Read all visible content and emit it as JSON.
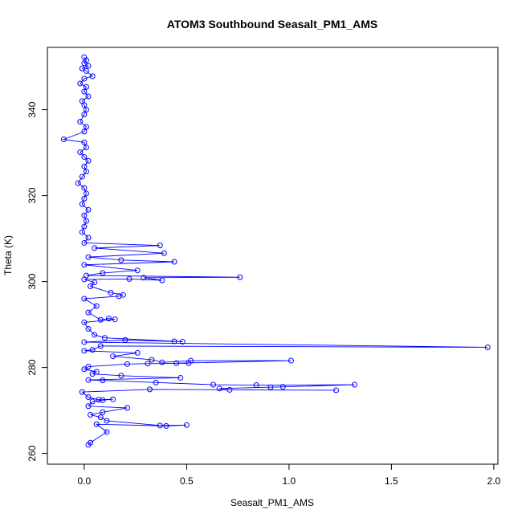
{
  "chart_data": {
    "type": "line",
    "title": "ATOM3 Southbound Seasalt_PM1_AMS",
    "xlabel": "Seasalt_PM1_AMS",
    "ylabel": "Theta (K)",
    "xlim": [
      -0.18,
      2.02
    ],
    "ylim": [
      257.5,
      354.5
    ],
    "x_ticks": [
      0.0,
      0.5,
      1.0,
      1.5,
      2.0
    ],
    "x_tick_labels": [
      "0.0",
      "0.5",
      "1.0",
      "1.5",
      "2.0"
    ],
    "y_ticks": [
      260,
      280,
      300,
      320,
      340
    ],
    "y_tick_labels": [
      "260",
      "280",
      "300",
      "320",
      "340"
    ],
    "grid": false,
    "marker": "open-circle",
    "series": [
      {
        "color": "#0000ff",
        "points": [
          [
            0.0,
            352.2
          ],
          [
            0.01,
            351.5
          ],
          [
            0.0,
            350.8
          ],
          [
            0.02,
            350.2
          ],
          [
            -0.01,
            349.6
          ],
          [
            0.01,
            349.0
          ],
          [
            0.04,
            347.8
          ],
          [
            0.0,
            347.2
          ],
          [
            -0.02,
            346.1
          ],
          [
            0.01,
            345.3
          ],
          [
            0.0,
            344.2
          ],
          [
            0.02,
            343.1
          ],
          [
            -0.01,
            342.0
          ],
          [
            0.0,
            341.1
          ],
          [
            0.01,
            340.0
          ],
          [
            0.0,
            338.9
          ],
          [
            -0.02,
            337.2
          ],
          [
            0.01,
            336.0
          ],
          [
            0.0,
            334.9
          ],
          [
            -0.1,
            333.1
          ],
          [
            0.0,
            332.4
          ],
          [
            0.01,
            331.2
          ],
          [
            -0.02,
            330.1
          ],
          [
            0.0,
            329.0
          ],
          [
            0.02,
            328.1
          ],
          [
            0.0,
            326.8
          ],
          [
            0.01,
            325.6
          ],
          [
            -0.01,
            324.4
          ],
          [
            -0.03,
            322.9
          ],
          [
            0.0,
            321.8
          ],
          [
            0.01,
            320.5
          ],
          [
            0.0,
            319.3
          ],
          [
            -0.01,
            318.0
          ],
          [
            0.02,
            316.7
          ],
          [
            0.0,
            315.4
          ],
          [
            0.01,
            314.1
          ],
          [
            0.0,
            312.8
          ],
          [
            -0.01,
            311.5
          ],
          [
            0.02,
            310.2
          ],
          [
            0.0,
            309.0
          ],
          [
            0.37,
            308.4
          ],
          [
            0.05,
            307.8
          ],
          [
            0.39,
            306.6
          ],
          [
            0.02,
            305.7
          ],
          [
            0.18,
            305.0
          ],
          [
            0.44,
            304.6
          ],
          [
            0.0,
            303.9
          ],
          [
            0.26,
            302.6
          ],
          [
            0.09,
            302.0
          ],
          [
            0.01,
            301.4
          ],
          [
            0.76,
            301.0
          ],
          [
            0.29,
            300.9
          ],
          [
            0.38,
            300.3
          ],
          [
            0.22,
            300.6
          ],
          [
            0.0,
            300.5
          ],
          [
            0.05,
            299.8
          ],
          [
            0.03,
            298.9
          ],
          [
            0.13,
            297.4
          ],
          [
            0.19,
            296.9
          ],
          [
            0.17,
            296.6
          ],
          [
            0.0,
            296.0
          ],
          [
            0.06,
            294.3
          ],
          [
            0.02,
            292.8
          ],
          [
            0.08,
            291.1
          ],
          [
            0.12,
            291.4
          ],
          [
            0.15,
            291.2
          ],
          [
            0.0,
            290.5
          ],
          [
            0.02,
            289.0
          ],
          [
            0.05,
            287.6
          ],
          [
            0.1,
            286.9
          ],
          [
            0.44,
            286.1
          ],
          [
            0.48,
            286.0
          ],
          [
            0.2,
            286.4
          ],
          [
            0.0,
            285.9
          ],
          [
            1.97,
            284.7
          ],
          [
            0.08,
            285.0
          ],
          [
            0.04,
            284.1
          ],
          [
            0.0,
            283.9
          ],
          [
            0.26,
            283.4
          ],
          [
            0.14,
            282.6
          ],
          [
            0.33,
            281.8
          ],
          [
            0.38,
            281.2
          ],
          [
            0.52,
            281.6
          ],
          [
            1.01,
            281.6
          ],
          [
            0.45,
            281.0
          ],
          [
            0.51,
            281.0
          ],
          [
            0.31,
            280.9
          ],
          [
            0.21,
            280.8
          ],
          [
            0.02,
            280.2
          ],
          [
            0.0,
            279.6
          ],
          [
            0.06,
            279.0
          ],
          [
            0.04,
            278.5
          ],
          [
            0.18,
            278.1
          ],
          [
            0.47,
            277.6
          ],
          [
            0.02,
            277.1
          ],
          [
            0.09,
            277.0
          ],
          [
            0.35,
            276.5
          ],
          [
            0.63,
            276.0
          ],
          [
            0.84,
            275.9
          ],
          [
            1.32,
            276.0
          ],
          [
            0.91,
            275.4
          ],
          [
            0.97,
            275.5
          ],
          [
            0.66,
            275.1
          ],
          [
            0.71,
            274.8
          ],
          [
            1.23,
            274.7
          ],
          [
            0.32,
            274.9
          ],
          [
            -0.01,
            274.3
          ],
          [
            0.02,
            273.1
          ],
          [
            0.07,
            272.5
          ],
          [
            0.14,
            272.6
          ],
          [
            0.09,
            272.4
          ],
          [
            0.04,
            272.1
          ],
          [
            0.02,
            271.0
          ],
          [
            0.21,
            270.6
          ],
          [
            0.09,
            269.6
          ],
          [
            0.03,
            269.0
          ],
          [
            0.08,
            268.4
          ],
          [
            0.11,
            267.6
          ],
          [
            0.37,
            266.5
          ],
          [
            0.5,
            266.6
          ],
          [
            0.4,
            266.4
          ],
          [
            0.06,
            266.8
          ],
          [
            0.11,
            265.0
          ],
          [
            0.03,
            262.5
          ],
          [
            0.02,
            262.0
          ]
        ]
      }
    ]
  }
}
